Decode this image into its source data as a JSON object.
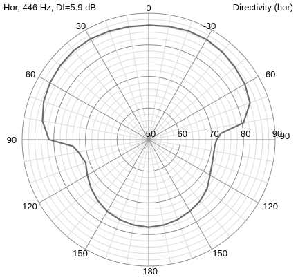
{
  "chart_data": {
    "type": "line",
    "polar": true,
    "title": "Hor, 446 Hz, DI=5.9 dB",
    "right_title": "Directivity (hor)",
    "radial_ticks": [
      50,
      60,
      70,
      80,
      90
    ],
    "rlim": [
      50,
      90
    ],
    "angle_ticks": [
      0,
      -30,
      -60,
      90,
      -120,
      -150,
      -180,
      150,
      120,
      90,
      60,
      30
    ],
    "angle_tick_labels": [
      "0",
      "-30",
      "-60",
      "90",
      "-120",
      "-150",
      "-180",
      "150",
      "120",
      "90",
      "60",
      "30"
    ],
    "grid": true,
    "minor_grid_step_db": 2,
    "series": [
      {
        "color": "#6b6b6b",
        "theta": [
          0,
          10,
          20,
          30,
          40,
          50,
          60,
          70,
          80,
          90,
          95,
          100,
          110,
          120,
          130,
          140,
          150,
          160,
          170,
          180,
          190,
          200,
          210,
          220,
          230,
          240,
          250,
          260,
          265,
          270,
          275,
          280,
          290,
          300,
          310,
          320,
          330,
          340,
          350
        ],
        "r": [
          86.2,
          86.3,
          86.5,
          86.8,
          86.8,
          86.5,
          86.0,
          85.3,
          84.1,
          81.5,
          74.0,
          72.6,
          71.2,
          72.4,
          73.8,
          75.1,
          76.2,
          76.9,
          77.4,
          77.7,
          77.4,
          76.9,
          76.1,
          75.3,
          74.1,
          72.4,
          71.4,
          71.0,
          71.0,
          71.5,
          73.0,
          80.4,
          84.1,
          85.1,
          85.6,
          86.2,
          86.6,
          86.6,
          86.4
        ]
      }
    ]
  }
}
